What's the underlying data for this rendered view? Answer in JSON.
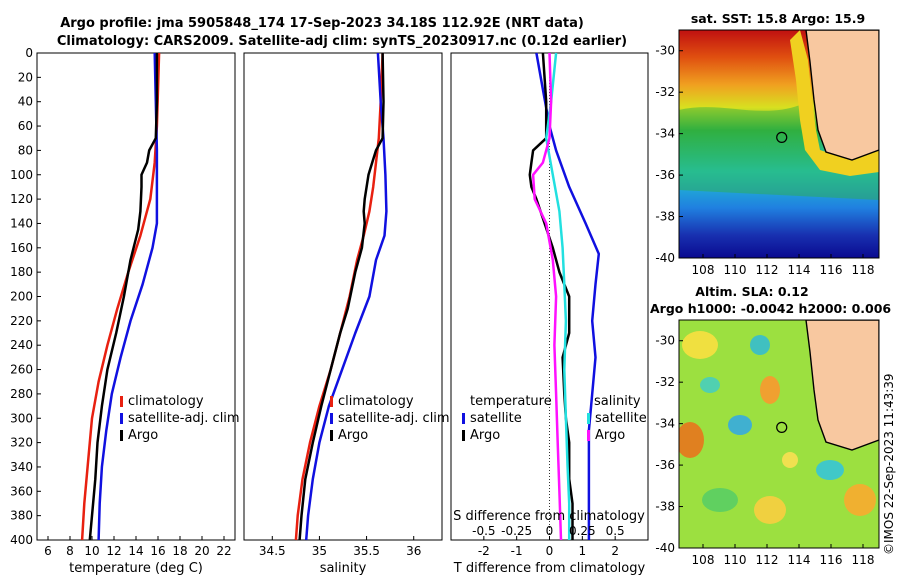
{
  "figure": {
    "title_line1": "Argo profile: jma 5905848_174 17-Sep-2023 34.18S 112.92E (NRT data)",
    "title_line2": "Climatology: CARS2009. Satellite-adj clim: synTS_20230917.nc (0.12d earlier)",
    "stamp": "©IMOS 22-Sep-2023 11:43:39",
    "colors": {
      "climatology": "#e82010",
      "satellite": "#1010e0",
      "argo": "#000000",
      "t_satellite": "#22e0e0",
      "s_satellite": "#ff10ff",
      "land": "#f8c8a0"
    }
  },
  "chart_data": [
    {
      "type": "line",
      "id": "temperature",
      "xlabel": "temperature (deg C)",
      "ylabel": "",
      "xlim": [
        5,
        23
      ],
      "ylim": [
        400,
        0
      ],
      "xticks": [
        6,
        8,
        10,
        12,
        14,
        16,
        18,
        20,
        22
      ],
      "yticks": [
        0,
        20,
        40,
        60,
        80,
        100,
        120,
        140,
        160,
        180,
        200,
        220,
        240,
        260,
        280,
        300,
        320,
        340,
        360,
        380,
        400
      ],
      "legend": [
        "climatology",
        "satellite-adj. clim",
        "Argo"
      ],
      "series": [
        {
          "name": "climatology",
          "color": "#e82010",
          "points": [
            [
              16.1,
              0
            ],
            [
              16.0,
              30
            ],
            [
              15.9,
              60
            ],
            [
              15.7,
              90
            ],
            [
              15.3,
              120
            ],
            [
              14.4,
              150
            ],
            [
              13.3,
              180
            ],
            [
              12.3,
              210
            ],
            [
              11.4,
              240
            ],
            [
              10.6,
              270
            ],
            [
              10.0,
              300
            ],
            [
              9.6,
              340
            ],
            [
              9.3,
              370
            ],
            [
              9.1,
              400
            ]
          ]
        },
        {
          "name": "satellite-adj. clim",
          "color": "#1010e0",
          "points": [
            [
              15.7,
              0
            ],
            [
              15.8,
              40
            ],
            [
              15.9,
              80
            ],
            [
              15.9,
              110
            ],
            [
              15.9,
              140
            ],
            [
              15.5,
              160
            ],
            [
              14.6,
              190
            ],
            [
              13.5,
              220
            ],
            [
              12.6,
              250
            ],
            [
              11.8,
              280
            ],
            [
              11.3,
              310
            ],
            [
              10.9,
              340
            ],
            [
              10.7,
              370
            ],
            [
              10.6,
              400
            ]
          ]
        },
        {
          "name": "Argo",
          "color": "#000000",
          "points": [
            [
              15.9,
              0
            ],
            [
              15.9,
              40
            ],
            [
              15.8,
              70
            ],
            [
              15.2,
              80
            ],
            [
              15.0,
              90
            ],
            [
              14.7,
              96
            ],
            [
              14.5,
              100
            ],
            [
              14.5,
              110
            ],
            [
              14.4,
              130
            ],
            [
              14.2,
              145
            ],
            [
              13.5,
              170
            ],
            [
              12.9,
              200
            ],
            [
              12.2,
              230
            ],
            [
              11.4,
              260
            ],
            [
              10.9,
              290
            ],
            [
              10.5,
              320
            ],
            [
              10.3,
              350
            ],
            [
              10.1,
              370
            ],
            [
              9.9,
              390
            ],
            [
              9.8,
              400
            ]
          ]
        }
      ]
    },
    {
      "type": "line",
      "id": "salinity",
      "xlabel": "salinity",
      "xlim": [
        34.2,
        36.3
      ],
      "ylim": [
        400,
        0
      ],
      "xticks": [
        34.5,
        35,
        35.5,
        36
      ],
      "xtick_labels": [
        "34.5",
        "35",
        "35.5",
        "36"
      ],
      "legend": [
        "climatology",
        "satellite-adj. clim",
        "Argo"
      ],
      "series": [
        {
          "name": "climatology",
          "color": "#e82010",
          "points": [
            [
              35.67,
              0
            ],
            [
              35.65,
              40
            ],
            [
              35.63,
              70
            ],
            [
              35.6,
              90
            ],
            [
              35.57,
              110
            ],
            [
              35.53,
              130
            ],
            [
              35.47,
              150
            ],
            [
              35.4,
              170
            ],
            [
              35.32,
              200
            ],
            [
              35.22,
              230
            ],
            [
              35.12,
              260
            ],
            [
              35.0,
              290
            ],
            [
              34.9,
              320
            ],
            [
              34.82,
              350
            ],
            [
              34.77,
              380
            ],
            [
              34.75,
              400
            ]
          ]
        },
        {
          "name": "satellite-adj. clim",
          "color": "#1010e0",
          "points": [
            [
              35.62,
              0
            ],
            [
              35.65,
              40
            ],
            [
              35.68,
              70
            ],
            [
              35.7,
              100
            ],
            [
              35.71,
              130
            ],
            [
              35.69,
              150
            ],
            [
              35.6,
              170
            ],
            [
              35.53,
              200
            ],
            [
              35.38,
              230
            ],
            [
              35.24,
              260
            ],
            [
              35.1,
              290
            ],
            [
              35.0,
              320
            ],
            [
              34.93,
              350
            ],
            [
              34.88,
              380
            ],
            [
              34.86,
              400
            ]
          ]
        },
        {
          "name": "Argo",
          "color": "#000000",
          "points": [
            [
              35.67,
              0
            ],
            [
              35.68,
              40
            ],
            [
              35.67,
              70
            ],
            [
              35.6,
              80
            ],
            [
              35.56,
              90
            ],
            [
              35.52,
              100
            ],
            [
              35.5,
              110
            ],
            [
              35.48,
              120
            ],
            [
              35.47,
              130
            ],
            [
              35.48,
              140
            ],
            [
              35.45,
              160
            ],
            [
              35.38,
              180
            ],
            [
              35.3,
              210
            ],
            [
              35.22,
              230
            ],
            [
              35.12,
              260
            ],
            [
              35.02,
              290
            ],
            [
              34.93,
              320
            ],
            [
              34.85,
              350
            ],
            [
              34.81,
              380
            ],
            [
              34.79,
              400
            ]
          ]
        }
      ]
    },
    {
      "type": "line",
      "id": "difference",
      "xlabel": "T difference from climatology",
      "xlabel_top": "S difference from climatology",
      "xlim": [
        -3,
        3
      ],
      "ylim": [
        400,
        0
      ],
      "xticks": [
        -2,
        -1,
        0,
        1,
        2
      ],
      "xtick_labels": [
        "-2",
        "-1",
        "0",
        "1",
        "2"
      ],
      "top_ticks": [
        "-0.5",
        "-0.25",
        "0",
        "0.25",
        "0.5"
      ],
      "top_tick_positions": [
        -2,
        -1,
        0,
        1,
        2
      ],
      "legend_t_title": "temperature",
      "legend_s_title": "salinity",
      "legend_t": [
        "satellite",
        "Argo"
      ],
      "legend_s": [
        "satellite",
        "Argo"
      ],
      "series": [
        {
          "name": "T satellite",
          "color": "#1010e0",
          "points": [
            [
              -0.4,
              0
            ],
            [
              -0.2,
              30
            ],
            [
              0.0,
              60
            ],
            [
              0.2,
              80
            ],
            [
              0.6,
              110
            ],
            [
              1.1,
              140
            ],
            [
              1.5,
              165
            ],
            [
              1.4,
              190
            ],
            [
              1.3,
              220
            ],
            [
              1.4,
              250
            ],
            [
              1.3,
              280
            ],
            [
              1.2,
              310
            ],
            [
              1.2,
              340
            ],
            [
              1.2,
              370
            ],
            [
              1.2,
              400
            ]
          ]
        },
        {
          "name": "Argo T",
          "color": "#000000",
          "points": [
            [
              -0.2,
              0
            ],
            [
              -0.1,
              40
            ],
            [
              -0.1,
              70
            ],
            [
              -0.5,
              80
            ],
            [
              -0.55,
              90
            ],
            [
              -0.6,
              100
            ],
            [
              -0.55,
              110
            ],
            [
              -0.4,
              120
            ],
            [
              -0.15,
              140
            ],
            [
              0.1,
              160
            ],
            [
              0.3,
              180
            ],
            [
              0.6,
              200
            ],
            [
              0.6,
              230
            ],
            [
              0.4,
              250
            ],
            [
              0.45,
              280
            ],
            [
              0.5,
              300
            ],
            [
              0.6,
              320
            ],
            [
              0.6,
              350
            ],
            [
              0.7,
              370
            ],
            [
              0.7,
              400
            ]
          ]
        },
        {
          "name": "T satellite (cyan)",
          "color": "#22e0e0",
          "points": [
            [
              0.2,
              0
            ],
            [
              0.05,
              40
            ],
            [
              -0.1,
              70
            ],
            [
              0.1,
              100
            ],
            [
              0.3,
              130
            ],
            [
              0.4,
              160
            ],
            [
              0.45,
              190
            ],
            [
              0.5,
              220
            ],
            [
              0.45,
              260
            ],
            [
              0.5,
              300
            ],
            [
              0.55,
              340
            ],
            [
              0.6,
              370
            ],
            [
              0.6,
              400
            ]
          ]
        },
        {
          "name": "Argo S (magenta)",
          "color": "#ff10ff",
          "points": [
            [
              0.0,
              0
            ],
            [
              0.05,
              40
            ],
            [
              0.0,
              70
            ],
            [
              -0.2,
              90
            ],
            [
              -0.5,
              100
            ],
            [
              -0.45,
              120
            ],
            [
              -0.1,
              140
            ],
            [
              0.1,
              170
            ],
            [
              0.2,
              200
            ],
            [
              0.15,
              240
            ],
            [
              0.2,
              280
            ],
            [
              0.25,
              320
            ],
            [
              0.3,
              360
            ],
            [
              0.35,
              400
            ]
          ]
        }
      ]
    },
    {
      "type": "heatmap",
      "id": "sst_map",
      "title": "sat. SST: 15.8 Argo: 15.9",
      "xlim": [
        106.5,
        119
      ],
      "ylim": [
        -40,
        -29
      ],
      "xticks": [
        108,
        110,
        112,
        114,
        116,
        118
      ],
      "yticks": [
        -30,
        -32,
        -34,
        -36,
        -38,
        -40
      ],
      "marker": [
        112.92,
        -34.18
      ]
    },
    {
      "type": "heatmap",
      "id": "sla_map",
      "title": "Altim. SLA: 0.12",
      "subtitle": "Argo h1000: -0.0042 h2000: 0.006",
      "xlim": [
        106.5,
        119
      ],
      "ylim": [
        -40,
        -29
      ],
      "xticks": [
        108,
        110,
        112,
        114,
        116,
        118
      ],
      "yticks": [
        -30,
        -32,
        -34,
        -36,
        -38,
        -40
      ],
      "marker": [
        112.92,
        -34.18
      ]
    }
  ]
}
